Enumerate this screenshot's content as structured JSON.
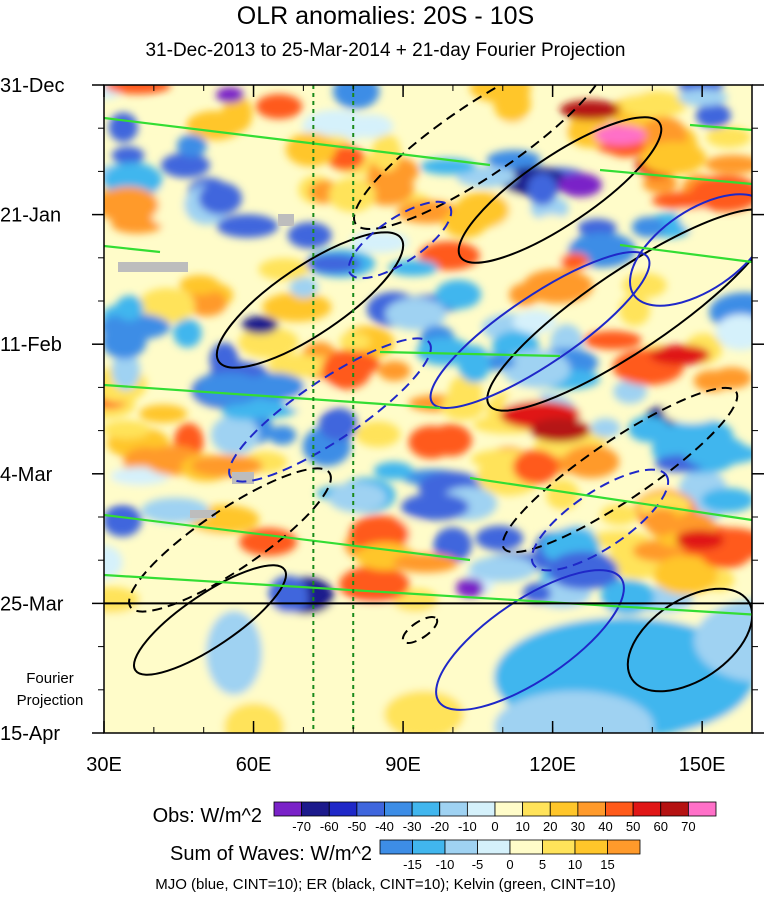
{
  "chart_data": {
    "type": "heatmap",
    "title": "OLR anomalies: 20S - 10S",
    "subtitle": "31-Dec-2013 to 25-Mar-2014 + 21-day Fourier Projection",
    "x_axis": {
      "range": [
        30,
        160
      ],
      "ticks": [
        30,
        60,
        90,
        120,
        150
      ],
      "tick_labels": [
        "30E",
        "60E",
        "90E",
        "120E",
        "150E"
      ],
      "unit": "degrees east longitude"
    },
    "y_axis": {
      "range_days": [
        0,
        105
      ],
      "direction": "time increases downward",
      "ticks_days": [
        0,
        21,
        42,
        63,
        84,
        105
      ],
      "tick_labels": [
        "31-Dec",
        "21-Jan",
        "11-Feb",
        "4-Mar",
        "25-Mar",
        "15-Apr"
      ],
      "projection_label": [
        "Fourier",
        "Projection"
      ],
      "projection_start_day": 84
    },
    "reference_lines_lon": [
      72,
      80
    ],
    "obs_colorbar": {
      "label": "Obs: W/m^2",
      "levels": [
        "-70",
        "-60",
        "-50",
        "-40",
        "-30",
        "-20",
        "-10",
        "0",
        "10",
        "20",
        "30",
        "40",
        "50",
        "60",
        "70"
      ],
      "colors": [
        "#7a22c8",
        "#1c1a8c",
        "#1f28c8",
        "#3f66dd",
        "#3d8de6",
        "#41b6ee",
        "#9fd2f2",
        "#d5f1fb",
        "#fffcc9",
        "#ffe35a",
        "#ffc62a",
        "#ff9a2b",
        "#ff5a1a",
        "#e01616",
        "#b51212",
        "#ff70c8"
      ]
    },
    "waves_colorbar": {
      "label": "Sum of Waves: W/m^2",
      "levels": [
        "-15",
        "-10",
        "-5",
        "0",
        "5",
        "10",
        "15"
      ],
      "colors": [
        "#3d8de6",
        "#41b6ee",
        "#9fd2f2",
        "#d5f1fb",
        "#fffcc9",
        "#ffe35a",
        "#ffc62a",
        "#ff9a2b"
      ]
    },
    "contours": [
      {
        "name": "MJO",
        "color": "#1f28c8",
        "interval": 10
      },
      {
        "name": "ER",
        "color": "#000000",
        "interval": 10
      },
      {
        "name": "Kelvin",
        "color": "#33dd33",
        "interval": 10
      }
    ],
    "footer": "MJO (blue, CINT=10); ER (black, CINT=10); Kelvin (green, CINT=10)"
  }
}
